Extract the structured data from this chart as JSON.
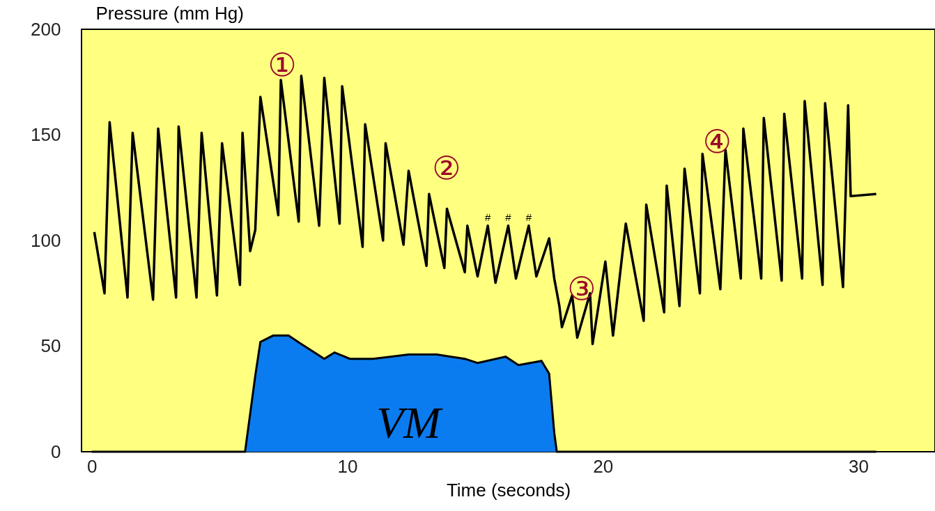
{
  "chart_data": {
    "type": "line",
    "xlabel": "Time (seconds)",
    "ylabel": "Pressure (mm Hg)",
    "xlim": [
      -0.4,
      33
    ],
    "xticks": [
      0,
      10,
      20,
      30
    ],
    "ylim": [
      0,
      200
    ],
    "yticks": [
      0,
      50,
      100,
      150,
      200
    ],
    "grid": false,
    "marker": "none",
    "line_style": "solid",
    "series": [
      {
        "color": "#000000",
        "x": [
          0.1,
          0.5,
          0.7,
          1.4,
          1.6,
          2.4,
          2.6,
          3.3,
          3.4,
          4.1,
          4.3,
          4.9,
          5.1,
          5.8,
          5.9,
          6.2,
          6.4,
          6.6,
          7.3,
          7.4,
          8.1,
          8.2,
          8.9,
          9.1,
          9.7,
          9.8,
          10.6,
          10.7,
          11.4,
          11.5,
          12.2,
          12.4,
          13.1,
          13.2,
          13.8,
          13.9,
          14.6,
          14.7,
          15.1,
          15.5,
          15.8,
          16.3,
          16.6,
          17.1,
          17.4,
          17.9,
          18.1,
          18.3,
          18.4,
          18.8,
          19.0,
          19.5,
          19.6,
          20.1,
          20.4,
          20.9,
          21.6,
          21.7,
          22.4,
          22.5,
          23.0,
          23.2,
          23.8,
          23.9,
          24.6,
          24.8,
          25.4,
          25.5,
          26.2,
          26.3,
          27.0,
          27.1,
          27.8,
          27.9,
          28.6,
          28.7,
          29.4,
          29.6,
          29.7,
          30.7
        ],
        "values": [
          104,
          75,
          156,
          73,
          151,
          72,
          153,
          73,
          154,
          73,
          151,
          74,
          146,
          79,
          151,
          95,
          105,
          168,
          112,
          176,
          109,
          178,
          107,
          177,
          108,
          173,
          97,
          155,
          100,
          146,
          98,
          133,
          88,
          122,
          87,
          115,
          85,
          107,
          83,
          107,
          80,
          107,
          82,
          107,
          83,
          101,
          82,
          69,
          59,
          74,
          54,
          75,
          51,
          90,
          55,
          108,
          62,
          117,
          66,
          126,
          69,
          134,
          75,
          141,
          77,
          143,
          82,
          153,
          82,
          158,
          81,
          160,
          82,
          166,
          79,
          165,
          78,
          164,
          121,
          122
        ]
      },
      {
        "type": "area",
        "color": "#0a7cf0",
        "x": [
          0,
          6.0,
          6.4,
          6.6,
          7.1,
          7.7,
          8.2,
          9.1,
          9.5,
          10.1,
          11.0,
          12.4,
          13.5,
          14.6,
          15.1,
          16.2,
          16.7,
          17.6,
          17.9,
          18.1,
          18.2,
          30.7
        ],
        "values": [
          0,
          0,
          36,
          52,
          55,
          55,
          51,
          44,
          47,
          44,
          44,
          46,
          46,
          44,
          42,
          45,
          41,
          43,
          37,
          9,
          0,
          0
        ]
      }
    ],
    "annotations": [
      {
        "text": "①",
        "x": 7.4,
        "y": 176
      },
      {
        "text": "②",
        "x": 13.2,
        "y": 122
      },
      {
        "text": "③",
        "x": 19.5,
        "y": 75
      },
      {
        "text": "④",
        "x": 24.8,
        "y": 143
      },
      {
        "text": "#",
        "x": 15.5,
        "y": 107
      },
      {
        "text": "#",
        "x": 16.3,
        "y": 107
      },
      {
        "text": "#",
        "x": 17.1,
        "y": 107
      },
      {
        "text": "VM",
        "x": 12.4,
        "y": 46
      }
    ]
  }
}
